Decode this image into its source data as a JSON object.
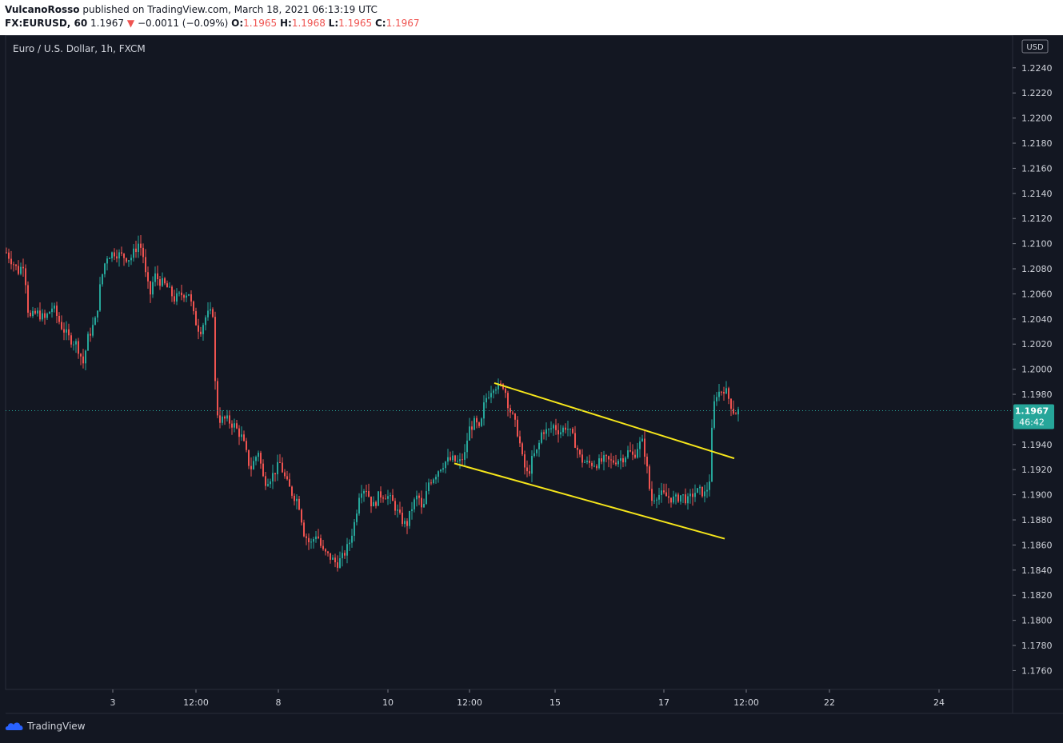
{
  "header": {
    "author": "VulcanoRosso",
    "published_text": "published on TradingView.com, March 18, 2021 06:13:19 UTC",
    "symbol": "FX:EURUSD, 60",
    "price": "1.1967",
    "change": "−0.0011 (−0.09%)",
    "o_label": "O:",
    "o_value": "1.1965",
    "h_label": "H:",
    "h_value": "1.1968",
    "l_label": "L:",
    "l_value": "1.1965",
    "c_label": "C:",
    "c_value": "1.1967"
  },
  "legend": {
    "title": "Euro / U.S. Dollar, 1h, FXCM"
  },
  "currency_badge": "USD",
  "last_price": {
    "value": "1.1967",
    "countdown": "46:42"
  },
  "footer": {
    "brand": "TradingView"
  },
  "colors": {
    "up": "#26a69a",
    "down": "#ef5350",
    "trendline": "#f5e51b",
    "background": "#131722",
    "axis_text": "#d1d4dc"
  },
  "chart_data": {
    "type": "candlestick",
    "title": "Euro / U.S. Dollar, 1h, FXCM",
    "ylim": [
      1.1745,
      1.2266
    ],
    "y_ticks": [
      "1.2240",
      "1.2220",
      "1.2200",
      "1.2180",
      "1.2160",
      "1.2140",
      "1.2120",
      "1.2100",
      "1.2080",
      "1.2060",
      "1.2040",
      "1.2020",
      "1.2000",
      "1.1980",
      "1.1960",
      "1.1940",
      "1.1920",
      "1.1900",
      "1.1880",
      "1.1860",
      "1.1840",
      "1.1820",
      "1.1800",
      "1.1780",
      "1.1760"
    ],
    "x_ticks": [
      "3",
      "12:00",
      "8",
      "10",
      "12:00",
      "15",
      "17",
      "12:00",
      "22",
      "24"
    ],
    "grid": false,
    "price_path": [
      [
        0,
        1.2093
      ],
      [
        8,
        1.2085
      ],
      [
        15,
        1.2078
      ],
      [
        22,
        1.2085
      ],
      [
        28,
        1.204
      ],
      [
        38,
        1.2045
      ],
      [
        48,
        1.204
      ],
      [
        58,
        1.205
      ],
      [
        68,
        1.2035
      ],
      [
        78,
        1.2025
      ],
      [
        88,
        1.202
      ],
      [
        96,
        1.2005
      ],
      [
        102,
        1.2025
      ],
      [
        112,
        1.204
      ],
      [
        118,
        1.207
      ],
      [
        125,
        1.209
      ],
      [
        135,
        1.2093
      ],
      [
        145,
        1.209
      ],
      [
        155,
        1.2088
      ],
      [
        165,
        1.21
      ],
      [
        170,
        1.2095
      ],
      [
        175,
        1.207
      ],
      [
        180,
        1.206
      ],
      [
        185,
        1.2075
      ],
      [
        192,
        1.207
      ],
      [
        200,
        1.2066
      ],
      [
        210,
        1.2056
      ],
      [
        220,
        1.206
      ],
      [
        228,
        1.2061
      ],
      [
        235,
        1.204
      ],
      [
        242,
        1.203
      ],
      [
        250,
        1.2043
      ],
      [
        258,
        1.2045
      ],
      [
        262,
        1.197
      ],
      [
        266,
        1.196
      ],
      [
        275,
        1.196
      ],
      [
        285,
        1.1955
      ],
      [
        295,
        1.1945
      ],
      [
        305,
        1.192
      ],
      [
        315,
        1.1935
      ],
      [
        322,
        1.191
      ],
      [
        332,
        1.1915
      ],
      [
        342,
        1.1925
      ],
      [
        350,
        1.191
      ],
      [
        358,
        1.19
      ],
      [
        365,
        1.1895
      ],
      [
        372,
        1.187
      ],
      [
        380,
        1.186
      ],
      [
        388,
        1.187
      ],
      [
        395,
        1.1855
      ],
      [
        405,
        1.185
      ],
      [
        413,
        1.1845
      ],
      [
        420,
        1.185
      ],
      [
        428,
        1.186
      ],
      [
        436,
        1.188
      ],
      [
        442,
        1.1905
      ],
      [
        450,
        1.1905
      ],
      [
        458,
        1.189
      ],
      [
        466,
        1.19
      ],
      [
        475,
        1.19
      ],
      [
        484,
        1.1893
      ],
      [
        492,
        1.1882
      ],
      [
        500,
        1.1875
      ],
      [
        508,
        1.1892
      ],
      [
        515,
        1.19
      ],
      [
        520,
        1.1885
      ],
      [
        528,
        1.191
      ],
      [
        535,
        1.1915
      ],
      [
        542,
        1.1922
      ],
      [
        550,
        1.1927
      ],
      [
        558,
        1.1928
      ],
      [
        566,
        1.1925
      ],
      [
        573,
        1.1932
      ],
      [
        578,
        1.1952
      ],
      [
        586,
        1.1958
      ],
      [
        592,
        1.195
      ],
      [
        598,
        1.1975
      ],
      [
        604,
        1.1982
      ],
      [
        610,
        1.1988
      ],
      [
        616,
        1.1985
      ],
      [
        622,
        1.1988
      ],
      [
        628,
        1.197
      ],
      [
        634,
        1.196
      ],
      [
        640,
        1.1948
      ],
      [
        646,
        1.1925
      ],
      [
        652,
        1.1915
      ],
      [
        658,
        1.193
      ],
      [
        664,
        1.1935
      ],
      [
        670,
        1.1952
      ],
      [
        677,
        1.195
      ],
      [
        684,
        1.1955
      ],
      [
        692,
        1.195
      ],
      [
        700,
        1.1955
      ],
      [
        706,
        1.1948
      ],
      [
        712,
        1.194
      ],
      [
        718,
        1.1928
      ],
      [
        726,
        1.1925
      ],
      [
        734,
        1.1925
      ],
      [
        740,
        1.1925
      ],
      [
        748,
        1.1928
      ],
      [
        756,
        1.1926
      ],
      [
        764,
        1.1928
      ],
      [
        772,
        1.193
      ],
      [
        778,
        1.1935
      ],
      [
        784,
        1.193
      ],
      [
        790,
        1.194
      ],
      [
        796,
        1.1942
      ],
      [
        800,
        1.1925
      ],
      [
        806,
        1.1895
      ],
      [
        812,
        1.19
      ],
      [
        820,
        1.19
      ],
      [
        828,
        1.1898
      ],
      [
        836,
        1.1896
      ],
      [
        844,
        1.19
      ],
      [
        852,
        1.1895
      ],
      [
        860,
        1.1902
      ],
      [
        868,
        1.1903
      ],
      [
        874,
        1.19
      ],
      [
        880,
        1.1915
      ],
      [
        882,
        1.195
      ],
      [
        886,
        1.198
      ],
      [
        892,
        1.1982
      ],
      [
        898,
        1.1985
      ],
      [
        904,
        1.1975
      ],
      [
        910,
        1.1965
      ],
      [
        916,
        1.1967
      ]
    ],
    "channel_upper": [
      [
        611,
        1.1989
      ],
      [
        911,
        1.1929
      ]
    ],
    "channel_lower": [
      [
        561,
        1.1925
      ],
      [
        899,
        1.1865
      ]
    ],
    "last_price": 1.1967
  }
}
